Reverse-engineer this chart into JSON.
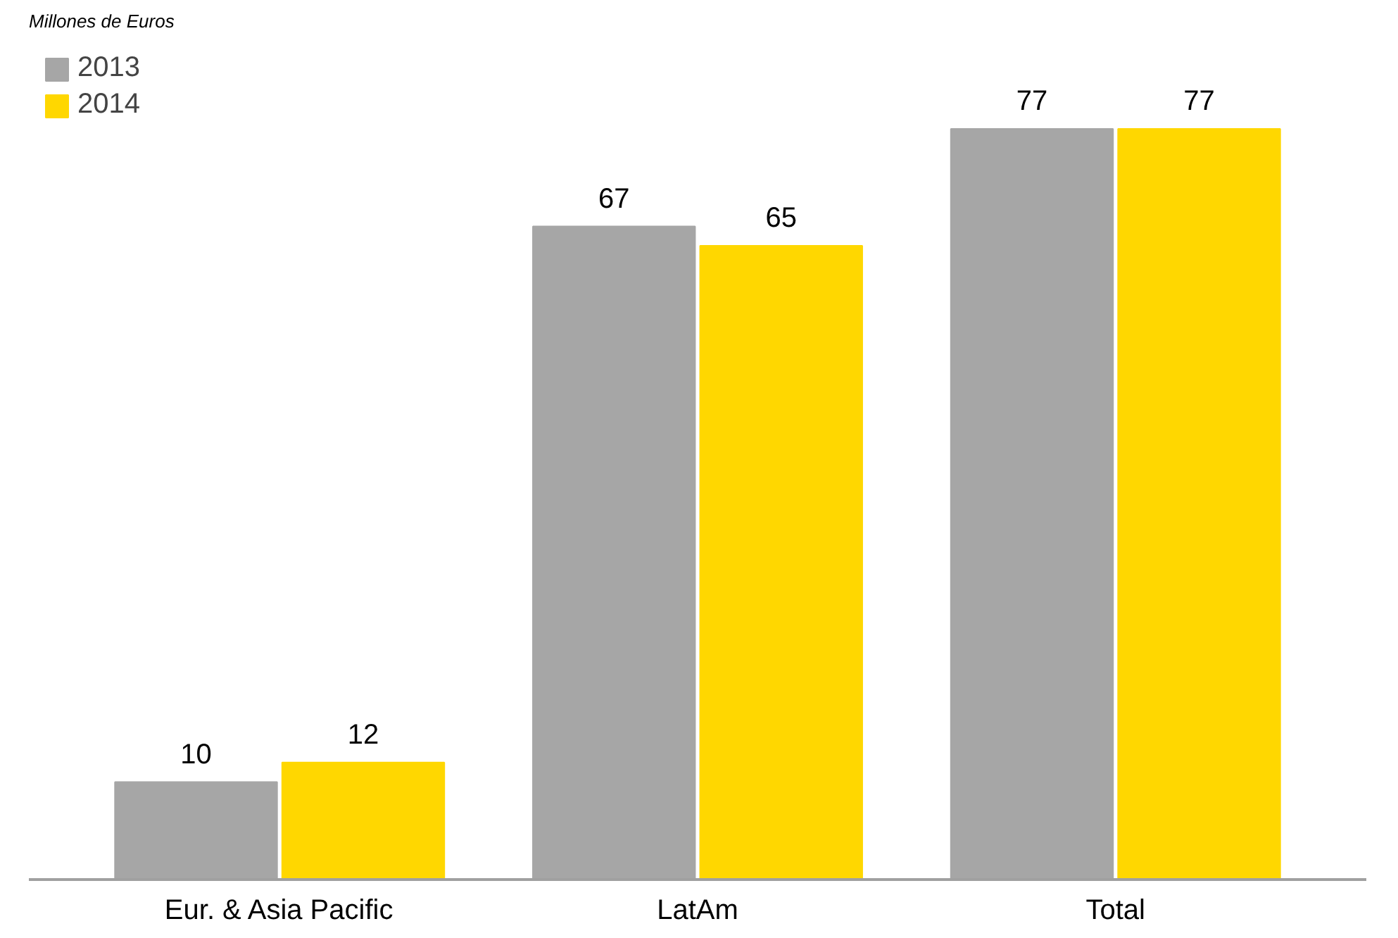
{
  "chart_data": {
    "type": "bar",
    "title": "Millones de Euros",
    "categories": [
      "Eur. & Asia Pacific",
      "LatAm",
      "Total"
    ],
    "series": [
      {
        "name": "2013",
        "color": "#a6a6a6",
        "values": [
          10,
          67,
          77
        ]
      },
      {
        "name": "2014",
        "color": "#ffd700",
        "values": [
          12,
          65,
          77
        ]
      }
    ],
    "data_labels": true,
    "legend": "top left",
    "grid": false
  }
}
